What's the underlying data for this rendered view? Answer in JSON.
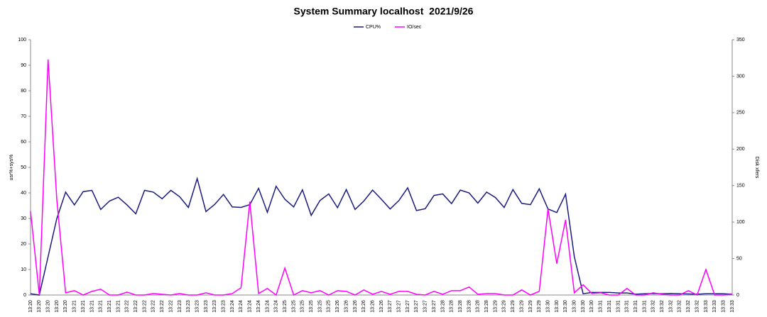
{
  "chart_data": {
    "type": "line",
    "title": "System Summary localhost  2021/9/26",
    "ylabel": "usr%+sys%",
    "y2label": "Disk xfers",
    "categories": [
      "13:20",
      "13:20",
      "13:20",
      "13:20",
      "13:20",
      "13:21",
      "13:21",
      "13:21",
      "13:21",
      "13:21",
      "13:21",
      "13:22",
      "13:22",
      "13:22",
      "13:22",
      "13:22",
      "13:22",
      "13:23",
      "13:23",
      "13:23",
      "13:23",
      "13:23",
      "13:23",
      "13:24",
      "13:24",
      "13:24",
      "13:24",
      "13:24",
      "13:24",
      "13:25",
      "13:25",
      "13:25",
      "13:25",
      "13:25",
      "13:25",
      "13:26",
      "13:26",
      "13:26",
      "13:26",
      "13:26",
      "13:26",
      "13:27",
      "13:27",
      "13:27",
      "13:27",
      "13:27",
      "13:27",
      "13:28",
      "13:28",
      "13:28",
      "13:28",
      "13:28",
      "13:28",
      "13:29",
      "13:29",
      "13:29",
      "13:29",
      "13:29",
      "13:29",
      "13:30",
      "13:30",
      "13:30",
      "13:30",
      "13:30",
      "13:30",
      "13:31",
      "13:31",
      "13:31",
      "13:31",
      "13:31",
      "13:31",
      "13:32",
      "13:32",
      "13:32",
      "13:32",
      "13:32",
      "13:32",
      "13:33",
      "13:33",
      "13:33",
      "13:33"
    ],
    "series": [
      {
        "name": "CPU%",
        "color": "#1a1a80",
        "axis": "y",
        "values": [
          0.5,
          0,
          15,
          30,
          40.3,
          35.3,
          40.5,
          41,
          33.5,
          36.8,
          38.3,
          35.3,
          31.8,
          41,
          40.3,
          37.7,
          41,
          38.5,
          34.3,
          45.6,
          32.7,
          35.5,
          39.4,
          34.5,
          34.3,
          35.4,
          41.8,
          32.4,
          42.6,
          37.5,
          34.5,
          41.2,
          31.2,
          37,
          39.6,
          34.2,
          41.3,
          33.5,
          36.8,
          41.1,
          37.5,
          33.7,
          37,
          42,
          33.1,
          33.8,
          39,
          39.6,
          35.8,
          41.1,
          40,
          36,
          40.3,
          38.2,
          34.3,
          41.3,
          35.9,
          35.4,
          41.6,
          33.7,
          32.3,
          39.5,
          15,
          0.5,
          1,
          1,
          1,
          0.8,
          0.8,
          0.3,
          0.5,
          0.6,
          0.5,
          0.6,
          0.5,
          0.4,
          0.3,
          0.5,
          0.5,
          0.5,
          0.3
        ]
      },
      {
        "name": "IO/sec",
        "color": "#ff00ff",
        "axis": "y2",
        "values": [
          115,
          0,
          323,
          130,
          3,
          6,
          0,
          5,
          8,
          0,
          0,
          4,
          0,
          0,
          2,
          1,
          0,
          2,
          0,
          0,
          3,
          0,
          0,
          2,
          10,
          128,
          2,
          9,
          0,
          37,
          0,
          6,
          3,
          6,
          0,
          6,
          5,
          0,
          7,
          1,
          5,
          1,
          5,
          5,
          1,
          0,
          5,
          1,
          6,
          6,
          11,
          1,
          2,
          2,
          0,
          0,
          7,
          0,
          5,
          118,
          43,
          103,
          3,
          14,
          2,
          3,
          0,
          0,
          9,
          0,
          0,
          3,
          1,
          0,
          0,
          6,
          0,
          35,
          0,
          0,
          1
        ]
      }
    ],
    "ylim": [
      0,
      100
    ],
    "yticks": [
      0,
      10,
      20,
      30,
      40,
      50,
      60,
      70,
      80,
      90,
      100
    ],
    "y2lim": [
      0,
      350
    ],
    "y2ticks": [
      0,
      50,
      100,
      150,
      200,
      250,
      300,
      350
    ],
    "grid": false,
    "legend": "top"
  }
}
